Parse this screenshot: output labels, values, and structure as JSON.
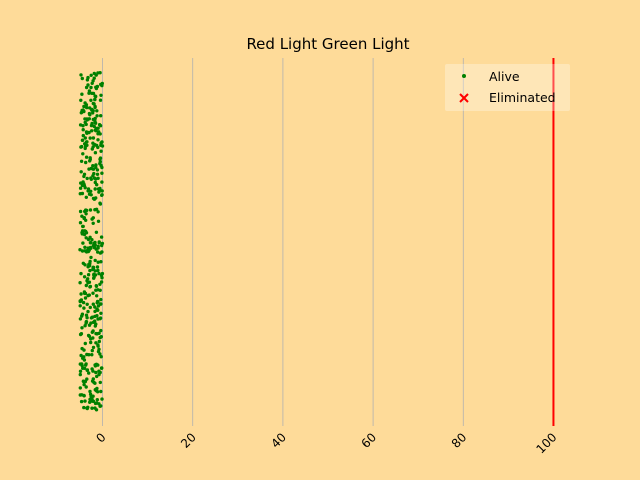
{
  "chart_data": {
    "type": "scatter",
    "title": "Red Light Green Light",
    "xlabel": "",
    "ylabel": "",
    "xlim": [
      -5,
      105
    ],
    "xticks": [
      0,
      20,
      40,
      60,
      80,
      100
    ],
    "tick_rotation_deg": 45,
    "y_axis_visible": false,
    "grid": "vertical only",
    "finish_line_x": 100,
    "finish_line_color": "#ff0000",
    "background_color": "#fedb99",
    "legend": {
      "placement": "top-right"
    },
    "series": [
      {
        "name": "Alive",
        "marker": "dot",
        "color": "#008000",
        "count": 456,
        "x_range": [
          -5,
          0
        ],
        "y_range": [
          0,
          1
        ]
      },
      {
        "name": "Eliminated",
        "marker": "x",
        "color": "#ff0000",
        "count": 0,
        "x_range": [],
        "y_range": []
      }
    ]
  }
}
